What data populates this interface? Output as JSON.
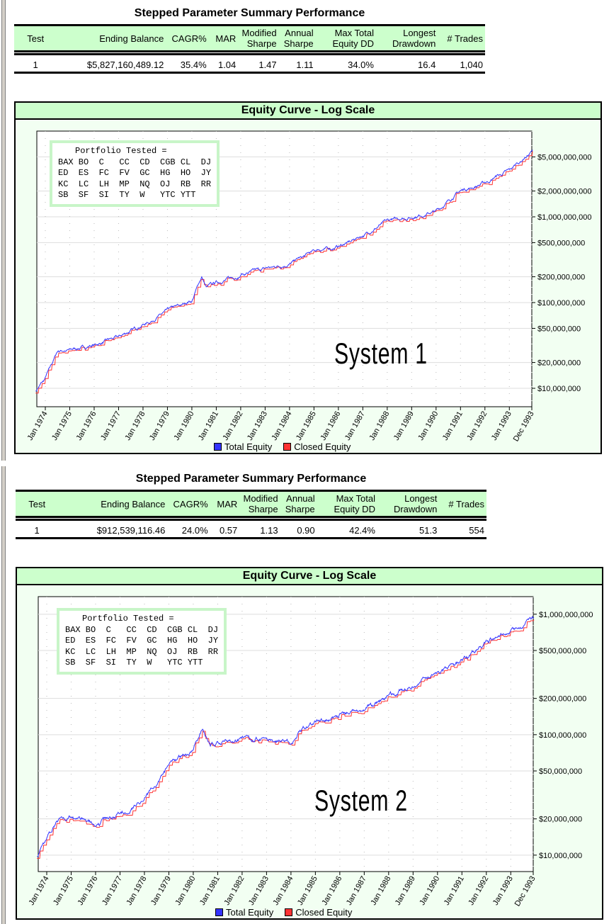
{
  "sections": [
    {
      "summary": {
        "title": "Stepped Parameter Summary Performance",
        "headers": [
          "Test",
          "Ending Balance",
          "CAGR%",
          "MAR",
          "Modified Sharpe",
          "Annual Sharpe",
          "Max Total Equity DD",
          "Longest Drawdown",
          "# Trades"
        ],
        "row": [
          "1",
          "$5,827,160,489.12",
          "35.4%",
          "1.04",
          "1.47",
          "1.11",
          "34.0%",
          "16.4",
          "1,040"
        ]
      },
      "portfolio": {
        "title": "Portfolio Tested =",
        "rows": [
          "BAX BO  C   CC  CD  CGB CL  DJ",
          "ED  ES  FC  FV  GC  HG  HO  JY",
          "KC  LC  LH  MP  NQ  OJ  RB  RR",
          "SB  SF  SI  TY  W   YTC YTT"
        ]
      },
      "system_label": "System 1"
    },
    {
      "summary": {
        "title": "Stepped Parameter Summary Performance",
        "headers": [
          "Test",
          "Ending Balance",
          "CAGR%",
          "MAR",
          "Modified Sharpe",
          "Annual Sharpe",
          "Max Total Equity DD",
          "Longest Drawdown",
          "# Trades"
        ],
        "row": [
          "1",
          "$912,539,116.46",
          "24.0%",
          "0.57",
          "1.13",
          "0.90",
          "42.4%",
          "51.3",
          "554"
        ]
      },
      "portfolio": {
        "title": "Portfolio Tested =",
        "rows": [
          "BAX BO  C   CC  CD  CGB CL  DJ",
          "ED  ES  FC  FV  GC  HG  HO  JY",
          "KC  LC  LH  MP  NQ  OJ  RB  RR",
          "SB  SF  SI  TY  W   YTC YTT"
        ]
      },
      "system_label": "System 2"
    }
  ],
  "chart_data": [
    {
      "type": "line",
      "title": "Equity Curve - Log Scale",
      "yscale": "log",
      "ylim": [
        6300000,
        10000000000
      ],
      "yticks": [
        5000000000,
        2000000000,
        1000000000,
        500000000,
        200000000,
        100000000,
        50000000,
        20000000,
        10000000
      ],
      "ytick_labels": [
        "$5,000,000,000",
        "$2,000,000,000",
        "$1,000,000,000",
        "$500,000,000",
        "$200,000,000",
        "$100,000,000",
        "$50,000,000",
        "$20,000,000",
        "$10,000,000"
      ],
      "xtick_labels": [
        "Jan 1974",
        "Jan 1975",
        "Jan 1976",
        "Jan 1977",
        "Jan 1978",
        "Jan 1979",
        "Jan 1980",
        "Jan 1981",
        "Jan 1982",
        "Jan 1983",
        "Jan 1984",
        "Jan 1985",
        "Jan 1986",
        "Jan 1987",
        "Jan 1988",
        "Jan 1989",
        "Jan 1990",
        "Jan 1991",
        "Jan 1992",
        "Jan 1993",
        "Dec 1993"
      ],
      "grid": true,
      "legend": "bottom",
      "series": [
        {
          "name": "Total Equity",
          "color": "#3333ff"
        },
        {
          "name": "Closed Equity",
          "color": "#ff3333"
        }
      ],
      "x": [
        1973.6,
        1974.0,
        1974.5,
        1975.0,
        1976.0,
        1977.0,
        1978.0,
        1979.0,
        1980.0,
        1980.4,
        1980.6,
        1981.0,
        1982.0,
        1983.0,
        1984.0,
        1985.0,
        1986.0,
        1987.0,
        1988.0,
        1989.0,
        1990.0,
        1991.0,
        1992.0,
        1993.0,
        1993.95
      ],
      "values": [
        9500000,
        13000000,
        27000000,
        28000000,
        32000000,
        40000000,
        55000000,
        80000000,
        105000000,
        200000000,
        150000000,
        170000000,
        210000000,
        250000000,
        280000000,
        400000000,
        450000000,
        600000000,
        900000000,
        1000000000,
        1150000000,
        2000000000,
        2500000000,
        3500000000,
        5827160489
      ]
    },
    {
      "type": "line",
      "title": "Equity Curve - Log Scale",
      "yscale": "log",
      "ylim": [
        8200000,
        1400000000
      ],
      "yticks": [
        1000000000,
        500000000,
        200000000,
        100000000,
        50000000,
        20000000,
        10000000
      ],
      "ytick_labels": [
        "$1,000,000,000",
        "$500,000,000",
        "$200,000,000",
        "$100,000,000",
        "$50,000,000",
        "$20,000,000",
        "$10,000,000"
      ],
      "xtick_labels": [
        "Jan 1974",
        "Jan 1975",
        "Jan 1976",
        "Jan 1977",
        "Jan 1978",
        "Jan 1979",
        "Jan 1980",
        "Jan 1981",
        "Jan 1982",
        "Jan 1983",
        "Jan 1984",
        "Jan 1985",
        "Jan 1986",
        "Jan 1987",
        "Jan 1988",
        "Jan 1989",
        "Jan 1990",
        "Jan 1991",
        "Jan 1992",
        "Jan 1993",
        "Dec 1993"
      ],
      "grid": true,
      "legend": "bottom",
      "series": [
        {
          "name": "Total Equity",
          "color": "#3333ff"
        },
        {
          "name": "Closed Equity",
          "color": "#ff3333"
        }
      ],
      "x": [
        1973.6,
        1974.0,
        1974.5,
        1975.0,
        1976.0,
        1977.0,
        1978.0,
        1979.0,
        1980.0,
        1980.4,
        1980.7,
        1981.0,
        1982.0,
        1983.0,
        1984.0,
        1984.5,
        1985.0,
        1986.0,
        1987.0,
        1988.0,
        1989.0,
        1990.0,
        1991.0,
        1992.0,
        1993.0,
        1993.95
      ],
      "values": [
        10000000,
        14000000,
        20000000,
        21000000,
        18000000,
        22000000,
        30000000,
        55000000,
        75000000,
        115000000,
        80000000,
        85000000,
        95000000,
        92000000,
        85000000,
        115000000,
        125000000,
        145000000,
        160000000,
        210000000,
        260000000,
        320000000,
        400000000,
        600000000,
        700000000,
        912539116
      ]
    }
  ]
}
